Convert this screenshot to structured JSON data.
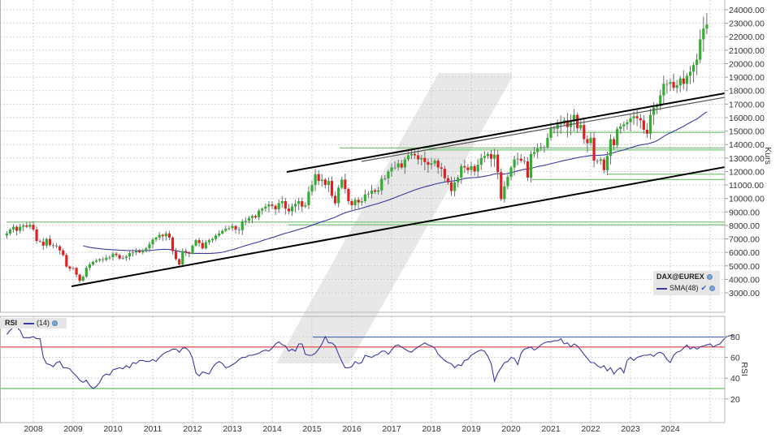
{
  "chart_data": [
    {
      "type": "candlestick",
      "title": "DAX@EUREX",
      "ylabel": "Kurs",
      "ylim": [
        2000,
        24500
      ],
      "yticks": [
        "24000.00",
        "23000.00",
        "22000.00",
        "21000.00",
        "20000.00",
        "19000.00",
        "18000.00",
        "17000.00",
        "16000.00",
        "15000.00",
        "14000.00",
        "13000.00",
        "12000.00",
        "11000.00",
        "10000.00",
        "9000.00",
        "8000.00",
        "7000.00",
        "6000.00",
        "5000.00",
        "4000.00",
        "3000.00"
      ],
      "xticks": [
        "2008",
        "2009",
        "2010",
        "2011",
        "2012",
        "2013",
        "2014",
        "2015",
        "2016",
        "2017",
        "2018",
        "2019",
        "2020",
        "2021",
        "2022",
        "2023",
        "2024"
      ],
      "grid": true,
      "legend": [
        {
          "label": "DAX@EUREX",
          "type": "candles"
        },
        {
          "label": "SMA(48)",
          "type": "line",
          "color": "#3a3aa0"
        }
      ],
      "series_monthly_close_approx": {
        "start": "2007-05",
        "values": [
          7400,
          7700,
          7900,
          7600,
          7900,
          8000,
          7900,
          8050,
          7700,
          6850,
          6800,
          6500,
          7000,
          6550,
          6500,
          6450,
          6150,
          5800,
          4950,
          4800,
          4850,
          4350,
          3900,
          4200,
          4850,
          5100,
          5300,
          5400,
          5500,
          5450,
          5600,
          5650,
          5900,
          5800,
          5550,
          5600,
          5700,
          5950,
          6000,
          6100,
          6000,
          6150,
          6300,
          6600,
          6950,
          7100,
          7300,
          7200,
          7400,
          7100,
          6100,
          5500,
          5100,
          6100,
          6000,
          5900,
          6500,
          6900,
          6700,
          6300,
          6750,
          6900,
          7000,
          7250,
          7400,
          7600,
          7750,
          7800,
          7950,
          7700,
          7650,
          8300,
          8350,
          8550,
          8700,
          8600,
          9100,
          9250,
          9400,
          9550,
          9450,
          9200,
          9650,
          9800,
          9250,
          9050,
          9400,
          9600,
          9800,
          9400,
          9500,
          10500,
          11000,
          11800,
          11300,
          11400,
          11000,
          11300,
          10200,
          9650,
          10800,
          11400,
          10700,
          9800,
          9500,
          9900,
          9700,
          9800,
          10300,
          10350,
          10600,
          10500,
          10600,
          11450,
          11500,
          12000,
          12300,
          12300,
          12600,
          12300,
          12900,
          13200,
          13300,
          13200,
          12900,
          13000,
          12700,
          12500,
          12600,
          12800,
          12300,
          12200,
          11500,
          11200,
          10550,
          11200,
          11550,
          12400,
          12300,
          12100,
          12400,
          12000,
          12500,
          13000,
          13150,
          13300,
          12950,
          13250,
          11950,
          9950,
          10900,
          11600,
          12300,
          12900,
          12950,
          12800,
          12750,
          11550,
          13300,
          13450,
          13700,
          13800,
          13800,
          14500,
          15200,
          15150,
          15500,
          15550,
          15800,
          15300,
          15700,
          16200,
          15200,
          15450,
          14400,
          14100,
          14500,
          12800,
          12800,
          12900,
          12100,
          13150,
          14400,
          13950,
          15150,
          15350,
          15500,
          15650,
          15950,
          16100,
          15950,
          15800,
          15100,
          14800,
          16200,
          16750,
          16850,
          17650,
          18500,
          18500,
          18650,
          18200,
          18400,
          18900,
          18500,
          19100,
          19400,
          19900,
          20300,
          21800,
          22600,
          22900
        ]
      },
      "horizontal_levels": [
        8250,
        8050,
        11800,
        11400,
        13750,
        13600,
        14900
      ],
      "trend_lines": [
        {
          "from": [
            "2009-03",
            3700
          ],
          "to": [
            "2025-03",
            12300
          ],
          "color": "#000000"
        },
        {
          "from": [
            "2014-08",
            12000
          ],
          "to": [
            "2025-03",
            17900
          ],
          "color": "#000000"
        },
        {
          "from": [
            "2016-05",
            12650
          ],
          "to": [
            "2025-03",
            17500
          ],
          "color": "#555555"
        }
      ]
    },
    {
      "type": "line",
      "title": "RSI",
      "ylabel": "RSI",
      "legend": [
        {
          "label": "(14)",
          "color": "#3a3aa0"
        }
      ],
      "yticks": [
        "80",
        "60",
        "40",
        "20"
      ],
      "ylim": [
        5,
        95
      ],
      "levels": [
        {
          "value": 70,
          "color": "#e8393a"
        },
        {
          "value": 30,
          "color": "#3aa83a"
        },
        {
          "value": 79.5,
          "color": "#3a5ab0",
          "from": "2015-03"
        }
      ],
      "values_approx": [
        82,
        86,
        89,
        89,
        86,
        79,
        79,
        79,
        80,
        78,
        78,
        60,
        54,
        53,
        51,
        55,
        56,
        50,
        50,
        49,
        45,
        42,
        38,
        36,
        38,
        33,
        30,
        32,
        36,
        42,
        44,
        43,
        48,
        49,
        50,
        49,
        52,
        50,
        55,
        54,
        57,
        57,
        56,
        56,
        58,
        56,
        60,
        63,
        65,
        66,
        68,
        68,
        65,
        69,
        69,
        66,
        59,
        45,
        42,
        46,
        45,
        44,
        50,
        54,
        56,
        54,
        50,
        51,
        53,
        55,
        58,
        60,
        60,
        62,
        62,
        63,
        64,
        66,
        67,
        66,
        69,
        73,
        75,
        72,
        71,
        66,
        68,
        66,
        73,
        73,
        63,
        62,
        62,
        64,
        68,
        73,
        80,
        74,
        74,
        71,
        63,
        56,
        50,
        50,
        51,
        56,
        54,
        55,
        62,
        61,
        60,
        62,
        63,
        66,
        66,
        63,
        67,
        71,
        72,
        70,
        68,
        66,
        65,
        68,
        70,
        72,
        74,
        72,
        71,
        69,
        63,
        60,
        57,
        55,
        54,
        50,
        53,
        52,
        57,
        58,
        62,
        64,
        66,
        67,
        66,
        61,
        54,
        37,
        45,
        50,
        55,
        56,
        60,
        59,
        53,
        64,
        68,
        69,
        70,
        67,
        69,
        72,
        74,
        75,
        75,
        76,
        76,
        78,
        73,
        74,
        70,
        73,
        71,
        67,
        63,
        59,
        55,
        55,
        52,
        50,
        52,
        47,
        50,
        44,
        48,
        50,
        45,
        57,
        60,
        57,
        60,
        61,
        62,
        62,
        63,
        61,
        64,
        65,
        63,
        58,
        55,
        62,
        65,
        66,
        69,
        72,
        68,
        70,
        68,
        70,
        71,
        72,
        73,
        70,
        72,
        73,
        77,
        80,
        81,
        81
      ]
    }
  ],
  "legend_main": {
    "title": "DAX@EUREX",
    "sma_label": "SMA(48)"
  },
  "legend_rsi": {
    "title": "RSI",
    "period_label": "(14)"
  },
  "axis": {
    "price_label": "Kurs",
    "rsi_label": "RSI"
  },
  "colors": {
    "up": "#2fae2f",
    "down": "#e02020",
    "neutral": "#8a8a8a",
    "sma": "#3a3aa0",
    "support": "#7cc67c",
    "rsi_over": "#e8393a",
    "rsi_under": "#3aa83a",
    "grid": "#c8c8c8",
    "watermark": "#e4e4e4"
  }
}
